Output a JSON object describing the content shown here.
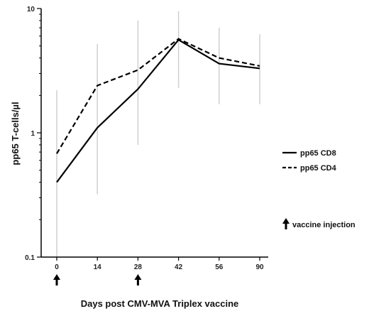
{
  "chart_data": {
    "type": "line",
    "title": "",
    "xlabel": "Days post CMV-MVA Triplex vaccine",
    "ylabel": "pp65 T-cells/µl",
    "yscale": "log",
    "ylim": [
      0.1,
      10
    ],
    "y_tick_labels": [
      "0.1",
      "1",
      "10"
    ],
    "categories": [
      "0",
      "14",
      "28",
      "42",
      "56",
      "90"
    ],
    "series": [
      {
        "name": "pp65 CD8",
        "line_style": "solid",
        "color": "#000000",
        "values": [
          0.4,
          1.1,
          2.25,
          5.6,
          3.6,
          3.3
        ]
      },
      {
        "name": "pp65 CD4",
        "line_style": "dashed",
        "color": "#000000",
        "values": [
          0.68,
          2.4,
          3.2,
          5.7,
          4.0,
          3.45
        ]
      }
    ],
    "error_bars": [
      {
        "category": "0",
        "low": 0.1,
        "high": 2.2
      },
      {
        "category": "14",
        "low": 0.32,
        "high": 5.2
      },
      {
        "category": "28",
        "low": 0.8,
        "high": 8.0
      },
      {
        "category": "42",
        "low": 2.3,
        "high": 9.5
      },
      {
        "category": "56",
        "low": 1.7,
        "high": 7.0
      },
      {
        "category": "90",
        "low": 1.7,
        "high": 6.2
      }
    ],
    "error_bar_color": "#cfcfcf",
    "vaccine_injection_days": [
      "0",
      "28"
    ],
    "annotation_label": "vaccine injection",
    "legend_position": "right",
    "grid": false
  }
}
